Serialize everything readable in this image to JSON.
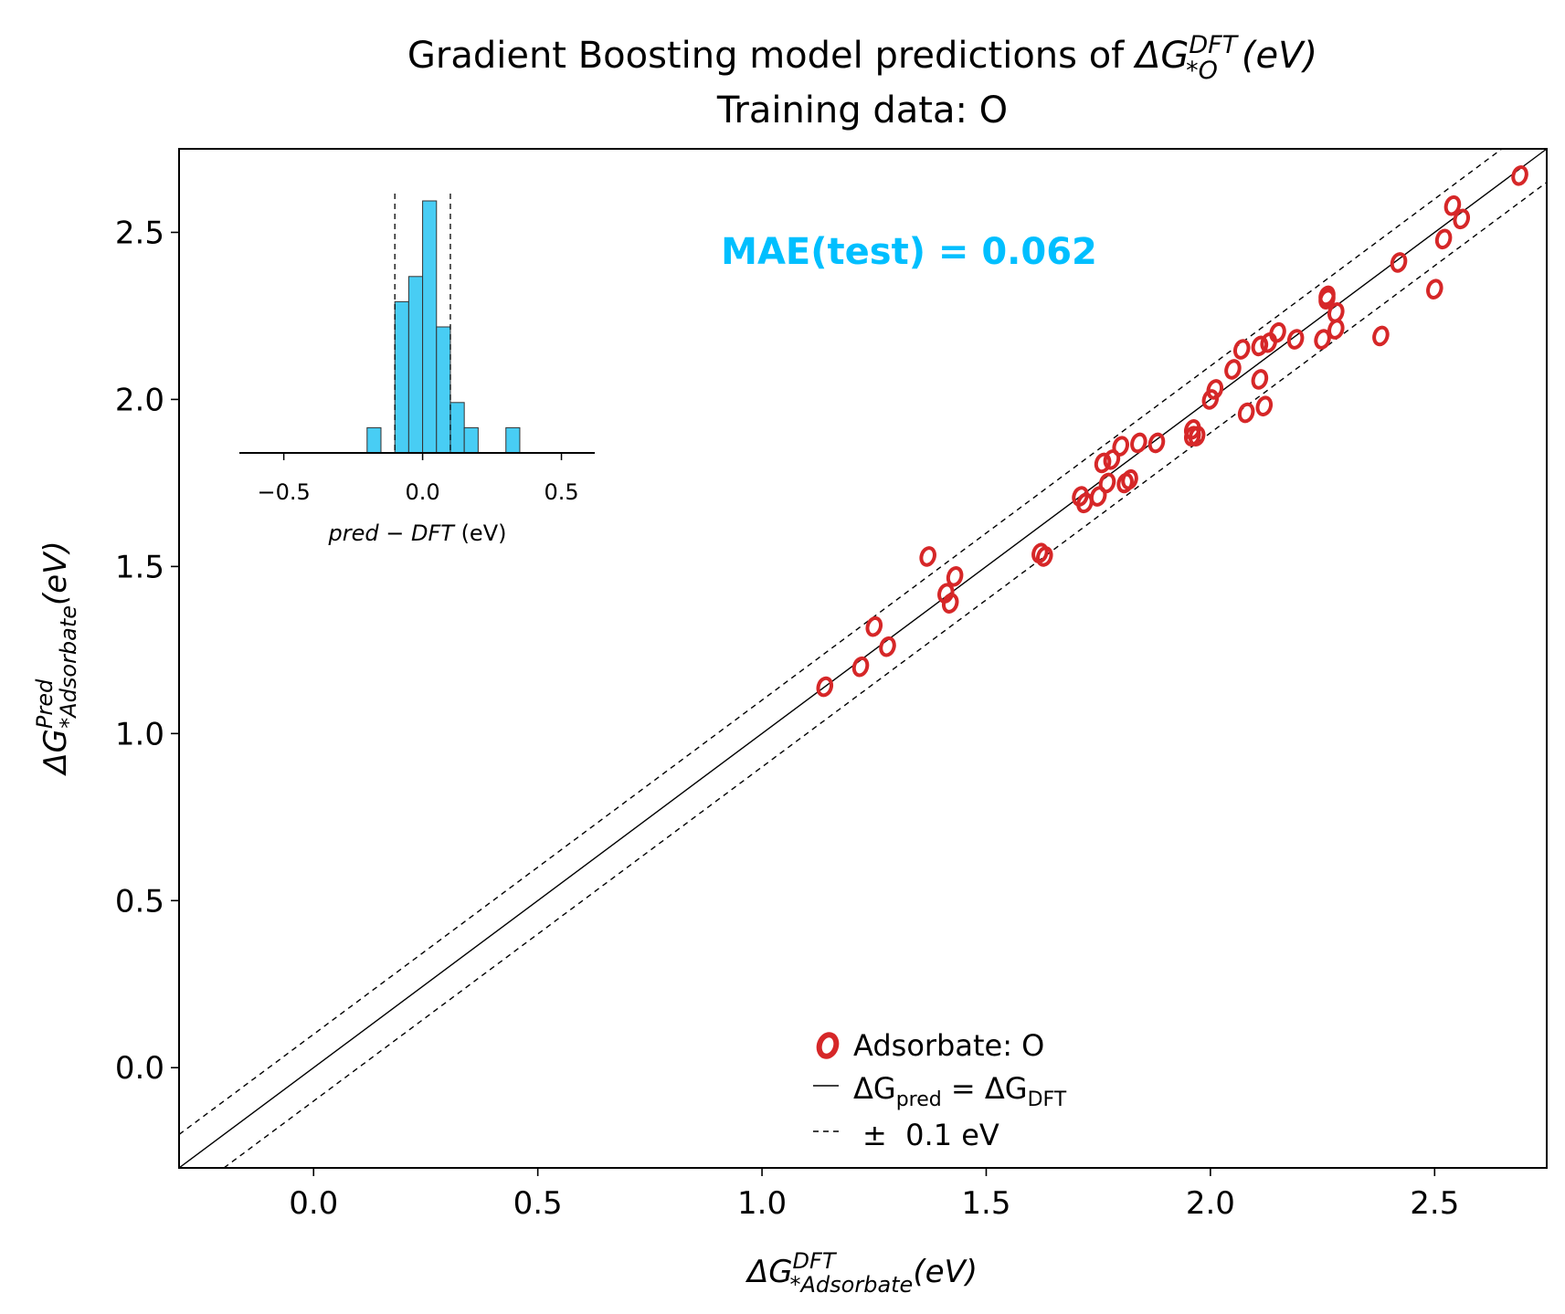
{
  "chart_data": {
    "type": "scatter",
    "title_parts": {
      "line1_prefix": "Gradient Boosting model predictions of ",
      "delta": "ΔG",
      "sup": "DFT",
      "sub": "*O",
      "suffix": "(eV)"
    },
    "subtitle": "Training data: O",
    "xlabel_parts": {
      "delta": "ΔG",
      "sup": "DFT",
      "sub": "*Adsorbate",
      "suffix": "(eV)"
    },
    "ylabel_parts": {
      "delta": "ΔG",
      "sup": "Pred",
      "sub": "*Adsorbate",
      "suffix": "(eV)"
    },
    "xlim": [
      -0.3,
      2.75
    ],
    "ylim": [
      -0.3,
      2.75
    ],
    "xticks": [
      0.0,
      0.5,
      1.0,
      1.5,
      2.0,
      2.5
    ],
    "yticks": [
      0.0,
      0.5,
      1.0,
      1.5,
      2.0,
      2.5
    ],
    "tick_labels": [
      "0.0",
      "0.5",
      "1.0",
      "1.5",
      "2.0",
      "2.5"
    ],
    "grid": false,
    "annotation": "MAE(test) = 0.062",
    "annotation_color": "#00bfff",
    "marker_color": "#d62728",
    "band": 0.1,
    "legend": {
      "placement": "lower-center",
      "marker_glyph": "o",
      "adsorbate_label": "Adsorbate: O",
      "parity_label": {
        "lhs": "ΔG",
        "lhs_sub": "pred",
        "eq": " = ",
        "rhs": "ΔG",
        "rhs_sub": "DFT"
      },
      "band_label": "±  0.1 eV"
    },
    "series": [
      {
        "name": "Adsorbate: O",
        "x": [
          1.14,
          1.22,
          1.25,
          1.28,
          1.37,
          1.41,
          1.42,
          1.43,
          1.62,
          1.63,
          1.71,
          1.72,
          1.75,
          1.76,
          1.77,
          1.78,
          1.8,
          1.81,
          1.82,
          1.84,
          1.88,
          1.96,
          1.96,
          1.97,
          2.0,
          2.01,
          2.05,
          2.07,
          2.08,
          2.11,
          2.11,
          2.12,
          2.13,
          2.15,
          2.19,
          2.25,
          2.26,
          2.26,
          2.28,
          2.28,
          2.38,
          2.42,
          2.5,
          2.52,
          2.54,
          2.56,
          2.69
        ],
        "y": [
          1.14,
          1.2,
          1.32,
          1.26,
          1.53,
          1.42,
          1.39,
          1.47,
          1.54,
          1.53,
          1.71,
          1.69,
          1.71,
          1.81,
          1.75,
          1.82,
          1.86,
          1.75,
          1.76,
          1.87,
          1.87,
          1.91,
          1.89,
          1.89,
          2.0,
          2.03,
          2.09,
          2.15,
          1.96,
          2.16,
          2.06,
          1.98,
          2.17,
          2.2,
          2.18,
          2.18,
          2.31,
          2.3,
          2.21,
          2.26,
          2.19,
          2.41,
          2.33,
          2.48,
          2.58,
          2.54,
          2.67
        ]
      }
    ],
    "inset_histogram": {
      "type": "bar",
      "xlabel_italic": "pred − DFT",
      "xlabel_unit": " (eV)",
      "xlim": [
        -0.66,
        0.62
      ],
      "xticks": [
        -0.5,
        0.0,
        0.5
      ],
      "xtick_labels": [
        "−0.5",
        "0.0",
        "0.5"
      ],
      "bin_width": 0.05,
      "bin_left_edges": [
        -0.2,
        -0.15,
        -0.1,
        -0.05,
        0.0,
        0.05,
        0.1,
        0.15,
        0.2,
        0.25,
        0.3
      ],
      "counts": [
        1,
        0,
        6,
        7,
        10,
        5,
        2,
        1,
        0,
        0,
        1
      ],
      "max_count": 10,
      "vlines": [
        -0.1,
        0.1
      ],
      "fill_color": "#48cdf4"
    }
  }
}
